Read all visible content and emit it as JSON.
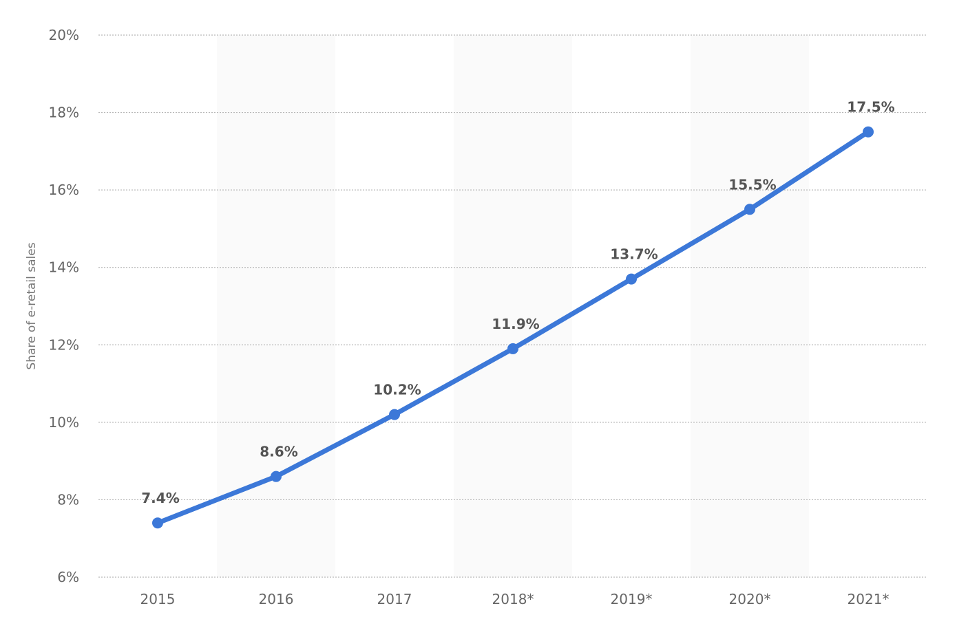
{
  "chart_data": {
    "type": "line",
    "title": "",
    "xlabel": "",
    "ylabel": "Share of e-retail sales",
    "categories": [
      "2015",
      "2016",
      "2017",
      "2018*",
      "2019*",
      "2020*",
      "2021*"
    ],
    "series": [
      {
        "values": [
          7.4,
          8.6,
          10.2,
          11.9,
          13.7,
          15.5,
          17.5
        ]
      }
    ],
    "data_labels": [
      "7.4%",
      "8.6%",
      "10.2%",
      "11.9%",
      "13.7%",
      "15.5%",
      "17.5%"
    ],
    "ylim": [
      6,
      20
    ],
    "y_ticks": [
      6,
      8,
      10,
      12,
      14,
      16,
      18,
      20
    ],
    "y_tick_labels": [
      "6%",
      "8%",
      "10%",
      "12%",
      "14%",
      "16%",
      "18%",
      "20%"
    ],
    "grid": true,
    "alternating_bands": true,
    "colors": {
      "line": "#3c78d8",
      "band": "#fafafa",
      "grid": "#b8b8b8"
    }
  }
}
